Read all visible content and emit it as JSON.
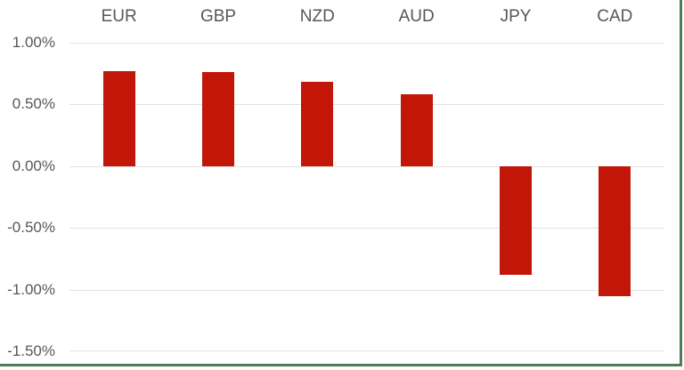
{
  "chart_data": {
    "type": "bar",
    "categories": [
      "EUR",
      "GBP",
      "NZD",
      "AUD",
      "JPY",
      "CAD"
    ],
    "values": [
      0.77,
      0.76,
      0.68,
      0.58,
      -0.88,
      -1.05
    ],
    "value_unit": "%",
    "title": "",
    "xlabel": "",
    "ylabel": "",
    "ylim": [
      -1.5,
      1.0
    ],
    "ytick_step": 0.5,
    "ytick_labels": [
      "1.00%",
      "0.50%",
      "0.00%",
      "-0.50%",
      "-1.00%",
      "-1.50%"
    ],
    "grid": true,
    "legend": false,
    "colors": {
      "bar": "#c21609",
      "gridline": "#e2e2e2",
      "axis_text": "#575757",
      "frame_border": "#4e7b58",
      "background": "#ffffff"
    }
  }
}
